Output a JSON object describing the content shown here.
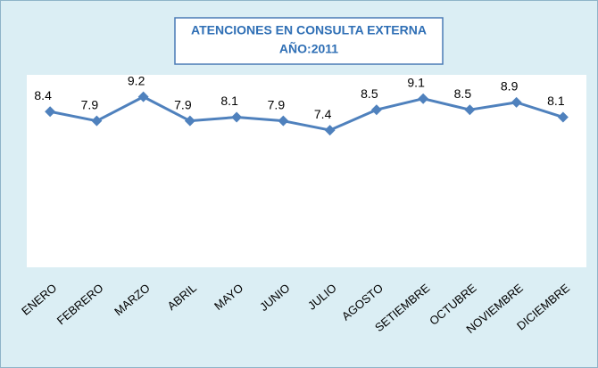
{
  "chart_data": {
    "type": "line",
    "title": "ATENCIONES EN CONSULTA EXTERNA",
    "subtitle": "AÑO:2011",
    "categories": [
      "ENERO",
      "FEBRERO",
      "MARZO",
      "ABRIL",
      "MAYO",
      "JUNIO",
      "JULIO",
      "AGOSTO",
      "SETIEMBRE",
      "OCTUBRE",
      "NOVIEMBRE",
      "DICIEMBRE"
    ],
    "values": [
      8.4,
      7.9,
      9.2,
      7.9,
      8.1,
      7.9,
      7.4,
      8.5,
      9.1,
      8.5,
      8.9,
      8.1
    ],
    "color": "#4f81bd",
    "ylim": [
      0,
      10
    ]
  }
}
